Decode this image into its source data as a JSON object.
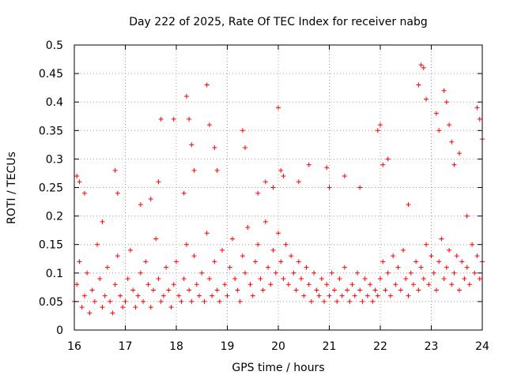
{
  "chart_data": {
    "type": "scatter",
    "title": "Day 222 of 2025, Rate Of TEC Index for receiver nabg",
    "xlabel": "GPS time / hours",
    "ylabel": "ROTI / TECUs",
    "xlim": [
      16,
      24
    ],
    "ylim": [
      0,
      0.5
    ],
    "x_ticks": [
      "16",
      "17",
      "18",
      "19",
      "20",
      "21",
      "22",
      "23",
      "24"
    ],
    "y_ticks": [
      "0",
      "0.05",
      "0.1",
      "0.15",
      "0.2",
      "0.25",
      "0.3",
      "0.35",
      "0.4",
      "0.45",
      "0.5"
    ],
    "grid": true,
    "legend": "none",
    "marker": "plus",
    "color": "#ff0000",
    "series": [
      {
        "x": [
          16.0,
          16.05,
          16.1,
          16.15,
          16.2,
          16.25,
          16.3,
          16.35,
          16.4,
          16.45,
          16.5,
          16.55,
          16.6,
          16.65,
          16.7,
          16.75,
          16.8,
          16.85,
          16.9,
          16.95,
          17.0,
          17.05,
          17.1,
          17.15,
          17.2,
          17.25,
          17.3,
          17.35,
          17.4,
          17.45,
          17.5,
          17.55,
          17.6,
          17.65,
          17.7,
          17.75,
          17.8,
          17.85,
          17.9,
          17.95,
          18.0,
          18.05,
          18.1,
          18.15,
          18.2,
          18.25,
          18.3,
          18.35,
          18.4,
          18.45,
          18.5,
          18.55,
          18.6,
          18.65,
          18.7,
          18.75,
          18.8,
          18.85,
          18.9,
          18.95,
          19.0,
          19.05,
          19.1,
          19.15,
          19.2,
          19.25,
          19.3,
          19.35,
          19.4,
          19.45,
          19.5,
          19.55,
          19.6,
          19.65,
          19.7,
          19.75,
          19.8,
          19.85,
          19.9,
          19.95,
          20.0,
          20.05,
          20.1,
          20.15,
          20.2,
          20.25,
          20.3,
          20.35,
          20.4,
          20.45,
          20.5,
          20.55,
          20.6,
          20.65,
          20.7,
          20.75,
          20.8,
          20.85,
          20.9,
          20.95,
          21.0,
          21.05,
          21.1,
          21.15,
          21.2,
          21.25,
          21.3,
          21.35,
          21.4,
          21.45,
          21.5,
          21.55,
          21.6,
          21.65,
          21.7,
          21.75,
          21.8,
          21.85,
          21.9,
          21.95,
          22.0,
          22.05,
          22.1,
          22.15,
          22.2,
          22.25,
          22.3,
          22.35,
          22.4,
          22.45,
          22.5,
          22.55,
          22.6,
          22.65,
          22.7,
          22.75,
          22.8,
          22.85,
          22.9,
          22.95,
          23.0,
          23.05,
          23.1,
          23.15,
          23.2,
          23.25,
          23.3,
          23.35,
          23.4,
          23.45,
          23.5,
          23.55,
          23.6,
          23.65,
          23.7,
          23.75,
          23.8,
          23.85,
          23.9,
          23.95,
          24.0
        ],
        "y": [
          0.05,
          0.08,
          0.12,
          0.04,
          0.06,
          0.1,
          0.03,
          0.07,
          0.05,
          0.15,
          0.09,
          0.04,
          0.06,
          0.11,
          0.05,
          0.03,
          0.08,
          0.13,
          0.06,
          0.04,
          0.05,
          0.09,
          0.14,
          0.07,
          0.04,
          0.06,
          0.1,
          0.05,
          0.12,
          0.08,
          0.04,
          0.07,
          0.16,
          0.09,
          0.05,
          0.06,
          0.11,
          0.07,
          0.04,
          0.08,
          0.12,
          0.06,
          0.05,
          0.09,
          0.15,
          0.07,
          0.05,
          0.13,
          0.08,
          0.06,
          0.1,
          0.05,
          0.17,
          0.09,
          0.06,
          0.12,
          0.07,
          0.05,
          0.14,
          0.08,
          0.06,
          0.11,
          0.16,
          0.09,
          0.07,
          0.05,
          0.13,
          0.1,
          0.18,
          0.08,
          0.06,
          0.12,
          0.15,
          0.09,
          0.07,
          0.19,
          0.11,
          0.08,
          0.14,
          0.1,
          0.17,
          0.12,
          0.09,
          0.15,
          0.08,
          0.13,
          0.1,
          0.07,
          0.12,
          0.09,
          0.06,
          0.11,
          0.08,
          0.05,
          0.1,
          0.07,
          0.06,
          0.09,
          0.05,
          0.08,
          0.06,
          0.1,
          0.07,
          0.05,
          0.09,
          0.06,
          0.11,
          0.07,
          0.05,
          0.08,
          0.06,
          0.1,
          0.07,
          0.05,
          0.09,
          0.06,
          0.08,
          0.05,
          0.07,
          0.06,
          0.09,
          0.12,
          0.07,
          0.1,
          0.06,
          0.13,
          0.08,
          0.11,
          0.07,
          0.14,
          0.09,
          0.06,
          0.1,
          0.08,
          0.12,
          0.07,
          0.11,
          0.09,
          0.15,
          0.08,
          0.13,
          0.1,
          0.07,
          0.12,
          0.16,
          0.09,
          0.11,
          0.14,
          0.08,
          0.1,
          0.13,
          0.07,
          0.12,
          0.09,
          0.11,
          0.08,
          0.15,
          0.1,
          0.13,
          0.09,
          0.12
        ]
      },
      {
        "x": [
          16.05,
          16.1,
          16.2,
          16.55,
          16.8,
          16.85,
          17.3,
          17.5,
          17.65,
          17.7,
          17.95,
          18.15,
          18.2,
          18.25,
          18.3,
          18.35,
          18.6,
          18.65,
          18.75,
          18.8,
          19.3,
          19.35,
          19.6,
          19.75,
          19.9,
          20.0,
          20.05,
          20.1,
          20.4,
          20.6,
          20.95,
          21.0,
          21.3,
          21.6,
          21.95,
          22.0,
          22.05,
          22.15,
          22.55,
          22.75,
          22.8,
          22.85,
          22.9,
          23.1,
          23.15,
          23.25,
          23.3,
          23.35,
          23.4,
          23.45,
          23.55,
          23.7,
          23.9,
          23.95,
          24.0
        ],
        "y": [
          0.27,
          0.26,
          0.24,
          0.19,
          0.28,
          0.24,
          0.22,
          0.23,
          0.26,
          0.37,
          0.37,
          0.24,
          0.41,
          0.37,
          0.325,
          0.28,
          0.43,
          0.36,
          0.32,
          0.28,
          0.35,
          0.32,
          0.24,
          0.26,
          0.25,
          0.39,
          0.28,
          0.27,
          0.26,
          0.29,
          0.285,
          0.25,
          0.27,
          0.25,
          0.35,
          0.36,
          0.29,
          0.3,
          0.22,
          0.43,
          0.465,
          0.46,
          0.405,
          0.38,
          0.35,
          0.42,
          0.4,
          0.36,
          0.33,
          0.29,
          0.31,
          0.2,
          0.39,
          0.37,
          0.335
        ]
      }
    ]
  }
}
